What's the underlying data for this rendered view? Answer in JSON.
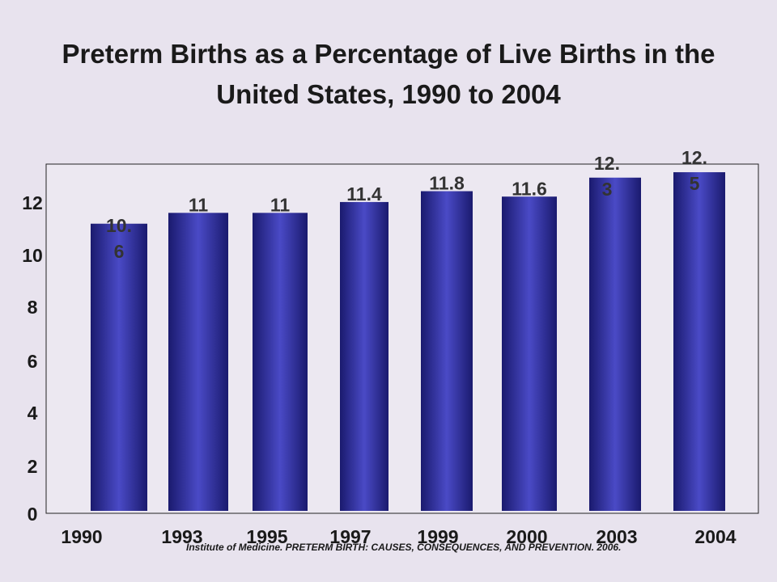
{
  "chart_data": {
    "type": "bar",
    "title": "Preterm Births as a Percentage of Live Births in the United States, 1990 to 2004",
    "categories": [
      "1990",
      "1993",
      "1995",
      "1997",
      "1999",
      "2000",
      "2003",
      "2004"
    ],
    "values": [
      10.6,
      11,
      11,
      11.4,
      11.8,
      11.6,
      12.3,
      12.5
    ],
    "data_labels": [
      [
        "10.",
        "6"
      ],
      [
        "11"
      ],
      [
        "11"
      ],
      [
        "11.4"
      ],
      [
        "11.8"
      ],
      [
        "11.6"
      ],
      [
        "12.",
        "3"
      ],
      [
        "12.",
        "5"
      ]
    ],
    "y_ticks": [
      "0",
      "2",
      "4",
      "6",
      "8",
      "10",
      "12"
    ],
    "ylim": [
      0,
      12.8
    ],
    "xlabel": "",
    "ylabel": "",
    "grid": false,
    "colors": {
      "bar_edge": "#1a1a6e",
      "bar_center": "#4a4ac6",
      "plot_background": "#ece8f1",
      "axis": "#222222"
    }
  },
  "source_note": "Institute of Medicine. PRETERM BIRTH: CAUSES, CONSEQUENCES, AND PREVENTION. 2006."
}
